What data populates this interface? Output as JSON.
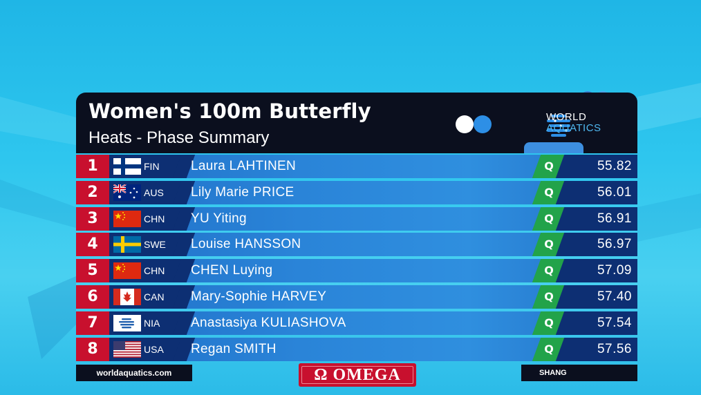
{
  "header": {
    "title": "Women's 100m Butterfly",
    "subtitle": "Heats - Phase Summary",
    "logo_line1": "WORLD",
    "logo_line2": "AQUATICS"
  },
  "rows": [
    {
      "rank": "1",
      "code": "FIN",
      "name": "Laura LAHTINEN",
      "q": "Q",
      "time": "55.82",
      "flag": "fin-flag-icon"
    },
    {
      "rank": "2",
      "code": "AUS",
      "name": "Lily Marie PRICE",
      "q": "Q",
      "time": "56.01",
      "flag": "aus-flag-icon"
    },
    {
      "rank": "3",
      "code": "CHN",
      "name": "YU Yiting",
      "q": "Q",
      "time": "56.91",
      "flag": "chn-flag-icon"
    },
    {
      "rank": "4",
      "code": "SWE",
      "name": "Louise HANSSON",
      "q": "Q",
      "time": "56.97",
      "flag": "swe-flag-icon"
    },
    {
      "rank": "5",
      "code": "CHN",
      "name": "CHEN Luying",
      "q": "Q",
      "time": "57.09",
      "flag": "chn-flag-icon"
    },
    {
      "rank": "6",
      "code": "CAN",
      "name": "Mary-Sophie HARVEY",
      "q": "Q",
      "time": "57.40",
      "flag": "can-flag-icon"
    },
    {
      "rank": "7",
      "code": "NIA",
      "name": "Anastasiya KULIASHOVA",
      "q": "Q",
      "time": "57.54",
      "flag": "nia-flag-icon"
    },
    {
      "rank": "8",
      "code": "USA",
      "name": "Regan SMITH",
      "q": "Q",
      "time": "57.56",
      "flag": "usa-flag-icon"
    }
  ],
  "footer": {
    "website": "worldaquatics.com",
    "sponsor": "Ω OMEGA",
    "location": "SHANG"
  },
  "colors": {
    "rank_red": "#c8102e",
    "qualify_green": "#22a34a",
    "dark_navy": "#0b0f1e",
    "row_blue": "#2a84d8"
  }
}
